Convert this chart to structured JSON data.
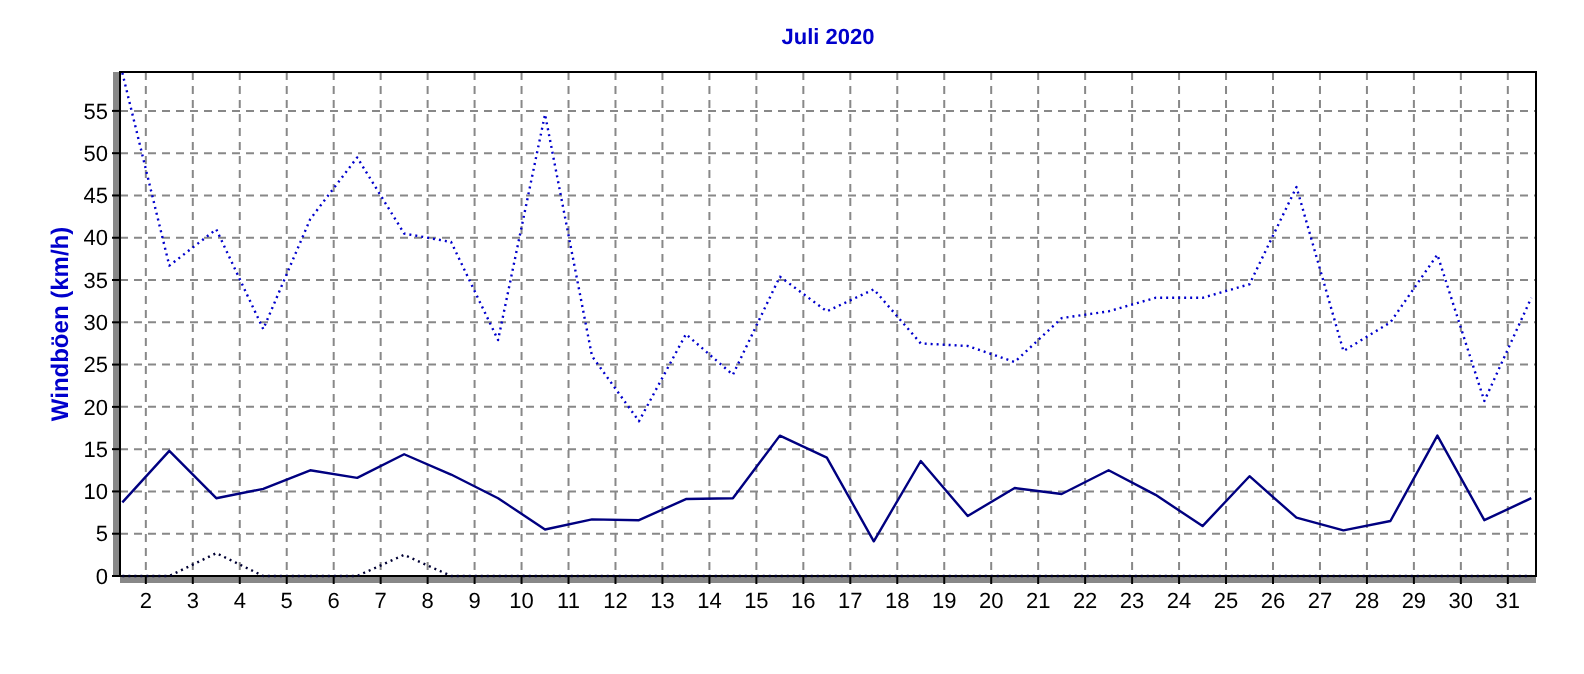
{
  "chart_data": {
    "type": "line",
    "title": "Juli 2020",
    "ylabel": "Windböen (km/h)",
    "x": [
      1.5,
      2.5,
      3.5,
      4.5,
      5.5,
      6.5,
      7.5,
      8.5,
      9.5,
      10.5,
      11.5,
      12.5,
      13.5,
      14.5,
      15.5,
      16.5,
      17.5,
      18.5,
      19.5,
      20.5,
      21.5,
      22.5,
      23.5,
      24.5,
      25.5,
      26.5,
      27.5,
      28.5,
      29.5,
      30.5,
      31.5
    ],
    "xlim": [
      1.45,
      31.6
    ],
    "xticks": [
      2,
      3,
      4,
      5,
      6,
      7,
      8,
      9,
      10,
      11,
      12,
      13,
      14,
      15,
      16,
      17,
      18,
      19,
      20,
      21,
      22,
      23,
      24,
      25,
      26,
      27,
      28,
      29,
      30,
      31
    ],
    "ylim": [
      0,
      59.6
    ],
    "yticks": [
      0,
      5,
      10,
      15,
      20,
      25,
      30,
      35,
      40,
      45,
      50,
      55
    ],
    "grid": true,
    "marker": "none",
    "series": [
      {
        "color": "#0000cc",
        "line_style": "dotted",
        "values": [
          59.5,
          36.7,
          41.0,
          29.2,
          42.2,
          49.5,
          40.5,
          39.5,
          27.9,
          54.6,
          26.0,
          18.3,
          28.6,
          23.8,
          35.4,
          31.3,
          33.9,
          27.5,
          27.2,
          25.3,
          30.5,
          31.3,
          32.9,
          32.9,
          34.5,
          46.0,
          26.6,
          30.0,
          38.0,
          20.7,
          32.9
        ]
      },
      {
        "color": "#000080",
        "line_style": "solid",
        "values": [
          8.7,
          14.8,
          9.2,
          10.3,
          12.5,
          11.6,
          14.4,
          12.0,
          9.2,
          5.5,
          6.7,
          6.6,
          9.1,
          9.2,
          16.6,
          14.0,
          4.1,
          13.6,
          7.1,
          10.4,
          9.7,
          12.5,
          9.6,
          5.9,
          11.8,
          6.9,
          5.4,
          6.5,
          16.6,
          6.6,
          9.2
        ]
      },
      {
        "color": "#000033",
        "line_style": "dotted",
        "values": [
          0,
          0,
          2.7,
          0,
          0,
          0,
          2.5,
          0,
          0,
          0,
          0,
          0,
          0,
          0,
          0,
          0,
          0,
          0,
          0,
          0,
          0,
          0,
          0,
          0,
          0,
          0,
          0,
          0,
          0,
          0,
          0
        ]
      }
    ]
  }
}
